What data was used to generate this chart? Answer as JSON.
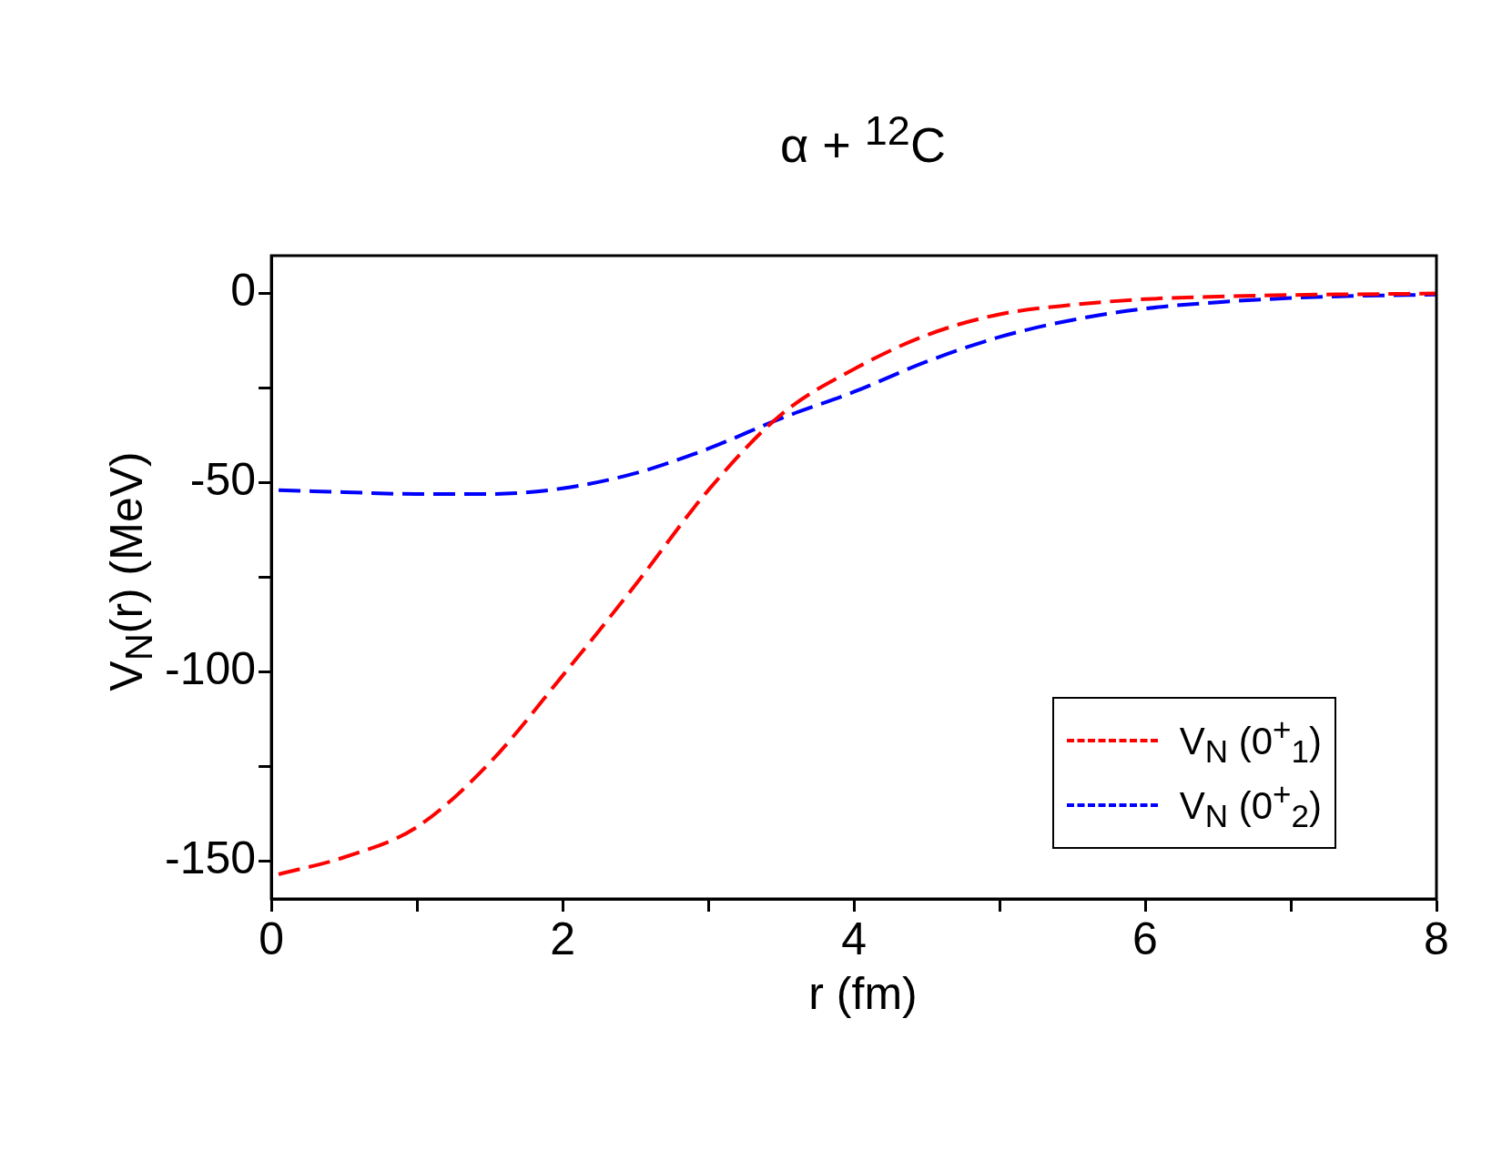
{
  "chart_data": {
    "type": "line",
    "title": "α + $^{12}$C",
    "xlabel": "r (fm)",
    "ylabel": "V$_{N}$(r) (MeV)",
    "xlim": [
      0,
      8
    ],
    "xticks": [
      0,
      {
        "value": 1,
        "label": null
      },
      2,
      {
        "value": 3,
        "label": null
      },
      4,
      {
        "value": 5,
        "label": null
      },
      6,
      {
        "value": 7,
        "label": null
      },
      8
    ],
    "ylim": [
      -160,
      10
    ],
    "yticks": [
      -150,
      {
        "value": -125,
        "label": null
      },
      -100,
      {
        "value": -75,
        "label": null
      },
      -50,
      {
        "value": -25,
        "label": null
      },
      0
    ],
    "grid": false,
    "legend": "bottom right",
    "marker": "none",
    "line_style": "dashed",
    "series": [
      {
        "name": "V$_{N}$ (0$^{+}$$_{1}$)",
        "color": "#ff0000",
        "x": [
          0.05,
          0.5,
          1,
          1.5,
          2,
          2.5,
          3,
          3.5,
          4,
          4.5,
          5,
          5.5,
          6,
          6.5,
          7,
          8
        ],
        "values": [
          -153.5,
          -149,
          -141,
          -124,
          -101,
          -77,
          -52,
          -32,
          -20,
          -11,
          -5.5,
          -3,
          -1.5,
          -0.8,
          -0.4,
          0
        ]
      },
      {
        "name": "V$_{N}$ (0$^{+}$$_{2}$)",
        "color": "#0000ff",
        "x": [
          0.05,
          0.5,
          1,
          1.5,
          2,
          2.5,
          3,
          3.5,
          4,
          4.5,
          5,
          5.5,
          6,
          6.5,
          7,
          7.5,
          8
        ],
        "values": [
          -52,
          -52.5,
          -53,
          -53,
          -51.5,
          -47.5,
          -41,
          -33,
          -26,
          -18,
          -11.5,
          -7,
          -4,
          -2.3,
          -1.2,
          -0.6,
          -0.3
        ]
      }
    ]
  }
}
